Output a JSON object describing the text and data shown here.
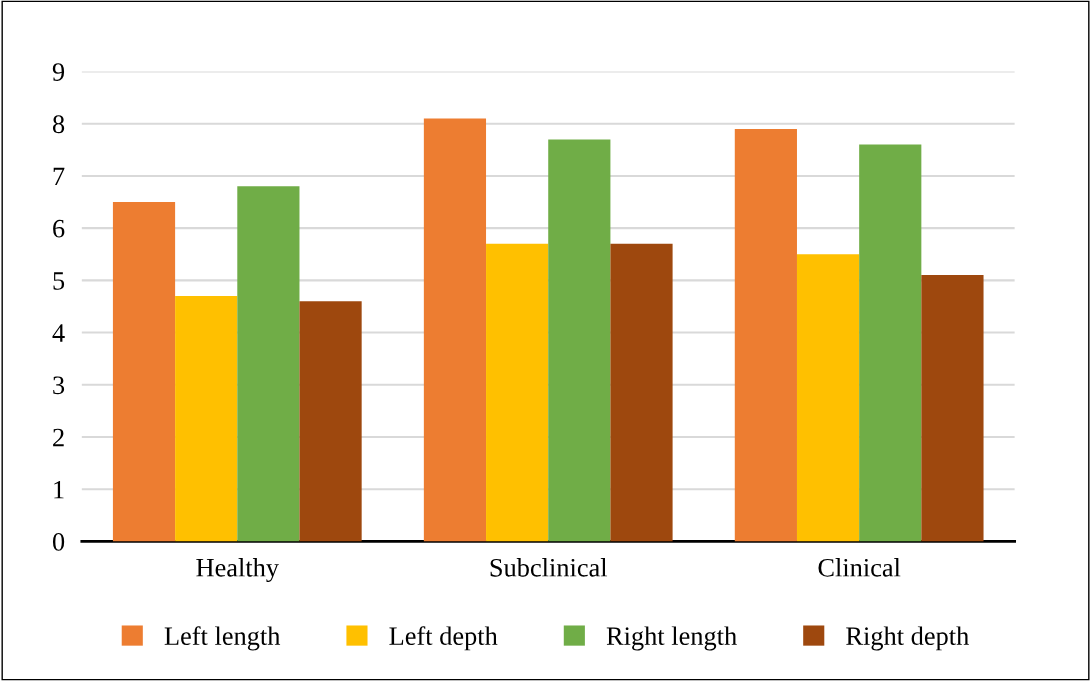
{
  "chart_data": {
    "type": "bar",
    "categories": [
      "Healthy",
      "Subclinical",
      "Clinical"
    ],
    "series": [
      {
        "name": "Left length",
        "color": "#ed7d31",
        "values": [
          6.5,
          8.1,
          7.9
        ]
      },
      {
        "name": "Left depth",
        "color": "#ffc000",
        "values": [
          4.7,
          5.7,
          5.5
        ]
      },
      {
        "name": "Right length",
        "color": "#70ad47",
        "values": [
          6.8,
          7.7,
          7.6
        ]
      },
      {
        "name": "Right depth",
        "color": "#9e480e",
        "values": [
          4.6,
          5.7,
          5.1
        ]
      }
    ],
    "ylim": [
      0,
      9
    ],
    "yticks": [
      0,
      1,
      2,
      3,
      4,
      5,
      6,
      7,
      8,
      9
    ],
    "grid": "y",
    "legend": "bottom"
  }
}
